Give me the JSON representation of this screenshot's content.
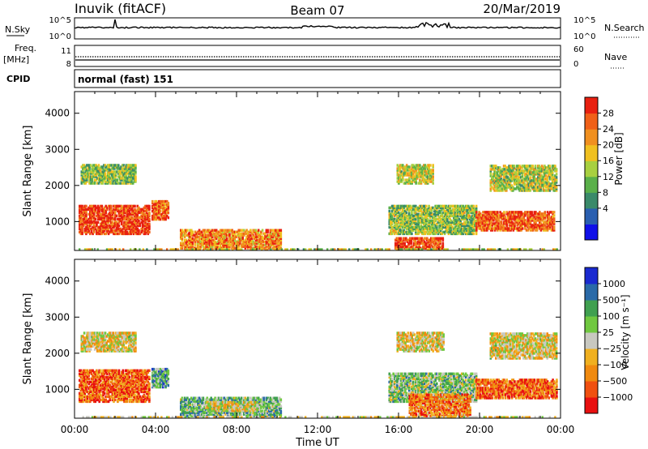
{
  "header": {
    "station": "Inuvik",
    "mode": "(fitACF)",
    "beam": "Beam 07",
    "date": "20/Mar/2019",
    "cpid_label": "CPID",
    "cpid_value": "normal (fast) 151"
  },
  "strip_labels": {
    "nsky": "N.Sky",
    "freq_top": "Freq.",
    "freq_unit": "[MHz]",
    "nsearch": "N.Search",
    "nave": "Nave",
    "nsky_ticks": [
      "10^5",
      "10^0"
    ],
    "nsearch_ticks": [
      "10^5",
      "10^0"
    ],
    "freq_ticks": [
      "11",
      "8"
    ],
    "nave_ticks": [
      "60",
      "0"
    ]
  },
  "chart_data": [
    {
      "type": "heatmap",
      "panel": "power",
      "ylabel": "Slant Range [km]",
      "ylim": [
        200,
        4600
      ],
      "yticks": [
        1000,
        2000,
        3000,
        4000
      ],
      "xlim": [
        0,
        24
      ],
      "colorbar_label": "Power [dB]",
      "colorbar_ticks": [
        "28",
        "24",
        "20",
        "16",
        "12",
        "8",
        "4"
      ],
      "colors": [
        "#1010e8",
        "#2a5fb0",
        "#3a8a6a",
        "#5ab04a",
        "#a8d040",
        "#f0c020",
        "#f09020",
        "#f06018",
        "#e82010"
      ],
      "regions": [
        {
          "t": [
            0.2,
            3.7
          ],
          "r": [
            700,
            1500
          ],
          "level": 0.9
        },
        {
          "t": [
            3.8,
            4.6
          ],
          "r": [
            1100,
            1600
          ],
          "level": 0.8
        },
        {
          "t": [
            5.2,
            10.2
          ],
          "r": [
            300,
            800
          ],
          "level": 0.75
        },
        {
          "t": [
            0.3,
            3.0
          ],
          "r": [
            2100,
            2600
          ],
          "level": 0.45
        },
        {
          "t": [
            15.5,
            19.8
          ],
          "r": [
            700,
            1500
          ],
          "level": 0.45
        },
        {
          "t": [
            15.8,
            18.2
          ],
          "r": [
            300,
            600
          ],
          "level": 0.9
        },
        {
          "t": [
            19.8,
            23.7
          ],
          "r": [
            800,
            1300
          ],
          "level": 0.85
        },
        {
          "t": [
            15.9,
            17.7
          ],
          "r": [
            2100,
            2600
          ],
          "level": 0.55
        },
        {
          "t": [
            20.5,
            23.8
          ],
          "r": [
            1900,
            2600
          ],
          "level": 0.5
        }
      ]
    },
    {
      "type": "heatmap",
      "panel": "velocity",
      "ylabel": "Slant Range [km]",
      "ylim": [
        200,
        4600
      ],
      "yticks": [
        1000,
        2000,
        3000,
        4000
      ],
      "xlim": [
        0,
        24
      ],
      "xticks": [
        "00:00",
        "04:00",
        "08:00",
        "12:00",
        "16:00",
        "20:00",
        "00:00"
      ],
      "xlabel": "Time UT",
      "colorbar_label": "Velocity [m s⁻¹]",
      "colorbar_ticks": [
        "1000",
        "500",
        "100",
        "25",
        "−25",
        "−100",
        "−500",
        "−1000"
      ],
      "colors": [
        "#e81010",
        "#f05010",
        "#f08a10",
        "#f0b020",
        "#c8c8c0",
        "#70c840",
        "#40a050",
        "#2a6aa8",
        "#1a2ad0"
      ],
      "regions": [
        {
          "t": [
            0.2,
            3.7
          ],
          "r": [
            700,
            1600
          ],
          "level": 0.2
        },
        {
          "t": [
            3.8,
            4.6
          ],
          "r": [
            1100,
            1600
          ],
          "level": 0.7
        },
        {
          "t": [
            5.2,
            10.2
          ],
          "r": [
            300,
            800
          ],
          "level": 0.65
        },
        {
          "t": [
            6.5,
            9.0
          ],
          "r": [
            450,
            700
          ],
          "level": 0.45
        },
        {
          "t": [
            0.3,
            3.0
          ],
          "r": [
            2100,
            2600
          ],
          "level": 0.45
        },
        {
          "t": [
            15.5,
            19.8
          ],
          "r": [
            700,
            1500
          ],
          "level": 0.6
        },
        {
          "t": [
            16.5,
            19.5
          ],
          "r": [
            300,
            900
          ],
          "level": 0.25
        },
        {
          "t": [
            19.8,
            23.8
          ],
          "r": [
            800,
            1300
          ],
          "level": 0.2
        },
        {
          "t": [
            15.9,
            18.2
          ],
          "r": [
            2100,
            2600
          ],
          "level": 0.45
        },
        {
          "t": [
            20.5,
            23.8
          ],
          "r": [
            1900,
            2600
          ],
          "level": 0.45
        }
      ]
    }
  ]
}
